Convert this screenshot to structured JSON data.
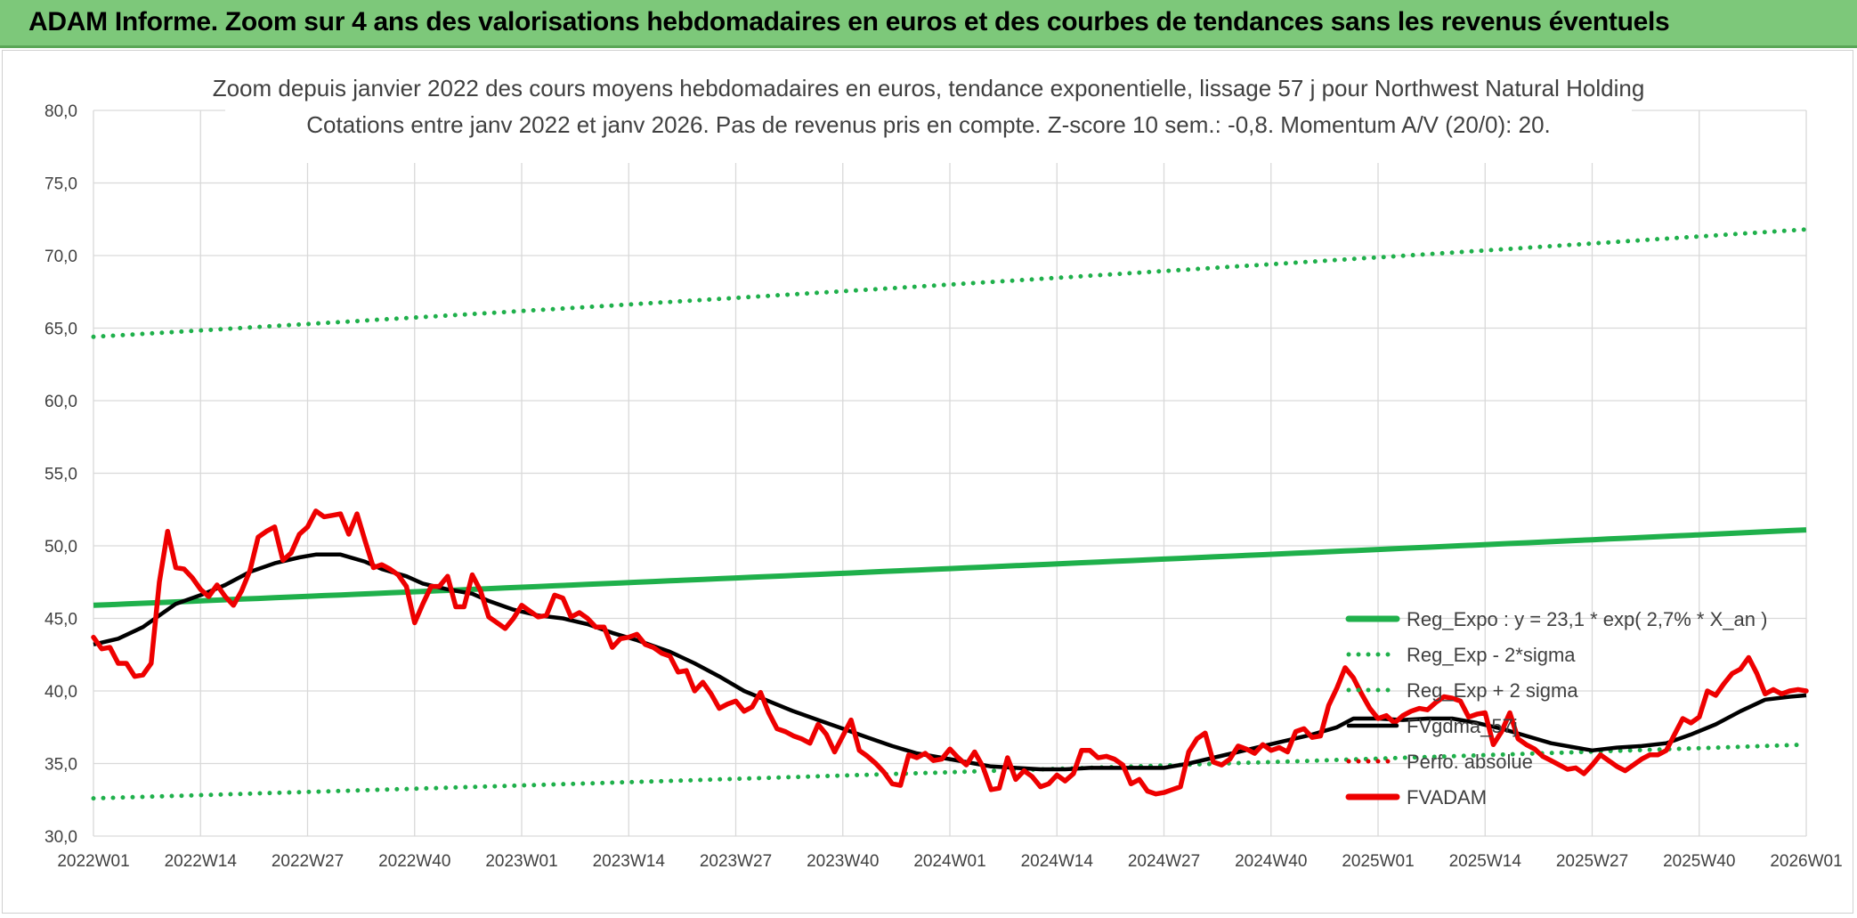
{
  "banner": {
    "title": "ADAM Informe. Zoom sur 4 ans des valorisations hebdomadaires en euros et des courbes de tendances sans les revenus éventuels"
  },
  "colors": {
    "banner_bg": "#7dc87a",
    "reg_expo": "#1fb04b",
    "sigma": "#1fb04b",
    "fvgdma": "#000000",
    "perfo": "#e00000",
    "fvadam": "#ee0000"
  },
  "chart_data": {
    "type": "line",
    "title": "Zoom depuis janvier 2022 des cours moyens hebdomadaires en euros, tendance exponentielle, lissage 57 j pour Northwest Natural Holding",
    "subtitle": "Cotations entre janv 2022 et janv 2026. Pas de revenus pris en compte. Z-score 10 sem.: -0,8. Momentum A/V (20/0): 20.",
    "xlabel": "",
    "ylabel": "",
    "ylim": [
      30,
      80
    ],
    "yticks": [
      "30,0",
      "35,0",
      "40,0",
      "45,0",
      "50,0",
      "55,0",
      "60,0",
      "65,0",
      "70,0",
      "75,0",
      "80,0"
    ],
    "xlim": [
      0,
      208
    ],
    "xticks": [
      {
        "label": "2022W01",
        "x": 0
      },
      {
        "label": "2022W14",
        "x": 13
      },
      {
        "label": "2022W27",
        "x": 26
      },
      {
        "label": "2022W40",
        "x": 39
      },
      {
        "label": "2023W01",
        "x": 52
      },
      {
        "label": "2023W14",
        "x": 65
      },
      {
        "label": "2023W27",
        "x": 78
      },
      {
        "label": "2023W40",
        "x": 91
      },
      {
        "label": "2024W01",
        "x": 104
      },
      {
        "label": "2024W14",
        "x": 117
      },
      {
        "label": "2024W27",
        "x": 130
      },
      {
        "label": "2024W40",
        "x": 143
      },
      {
        "label": "2025W01",
        "x": 156
      },
      {
        "label": "2025W14",
        "x": 169
      },
      {
        "label": "2025W27",
        "x": 182
      },
      {
        "label": "2025W40",
        "x": 195
      },
      {
        "label": "2026W01",
        "x": 208
      }
    ],
    "grid": true,
    "legend_position": "bottom-right",
    "series": [
      {
        "name": "Reg_Expo : y = 23,1 * exp( 2,7% *  X_an )",
        "style": "solid",
        "color": "#1fb04b",
        "start": 45.9,
        "end": 51.1
      },
      {
        "name": "Reg_Exp - 2*sigma",
        "style": "dotted",
        "color": "#1fb04b",
        "start": 32.6,
        "end": 36.3
      },
      {
        "name": "Reg_Exp + 2 sigma",
        "style": "dotted",
        "color": "#1fb04b",
        "start": 64.4,
        "end": 71.8
      },
      {
        "name": "FVgdma_57j",
        "style": "solid",
        "color": "#000000",
        "points": [
          [
            0,
            43.2
          ],
          [
            3,
            43.6
          ],
          [
            6,
            44.4
          ],
          [
            8,
            45.2
          ],
          [
            10,
            46.0
          ],
          [
            13,
            46.6
          ],
          [
            16,
            47.3
          ],
          [
            19,
            48.2
          ],
          [
            22,
            48.8
          ],
          [
            25,
            49.2
          ],
          [
            27,
            49.4
          ],
          [
            30,
            49.4
          ],
          [
            33,
            48.9
          ],
          [
            35,
            48.4
          ],
          [
            38,
            47.9
          ],
          [
            40,
            47.4
          ],
          [
            43,
            47.0
          ],
          [
            46,
            46.7
          ],
          [
            48,
            46.2
          ],
          [
            51,
            45.6
          ],
          [
            54,
            45.2
          ],
          [
            57,
            45.0
          ],
          [
            60,
            44.6
          ],
          [
            63,
            44.0
          ],
          [
            66,
            43.5
          ],
          [
            70,
            42.7
          ],
          [
            73,
            41.9
          ],
          [
            76,
            41.0
          ],
          [
            79,
            40.0
          ],
          [
            82,
            39.3
          ],
          [
            85,
            38.6
          ],
          [
            88,
            38.0
          ],
          [
            91,
            37.4
          ],
          [
            94,
            36.8
          ],
          [
            97,
            36.2
          ],
          [
            100,
            35.7
          ],
          [
            103,
            35.4
          ],
          [
            106,
            35.1
          ],
          [
            109,
            34.8
          ],
          [
            112,
            34.7
          ],
          [
            115,
            34.6
          ],
          [
            118,
            34.6
          ],
          [
            121,
            34.7
          ],
          [
            124,
            34.7
          ],
          [
            127,
            34.7
          ],
          [
            130,
            34.7
          ],
          [
            133,
            35.0
          ],
          [
            136,
            35.4
          ],
          [
            139,
            35.8
          ],
          [
            142,
            36.2
          ],
          [
            145,
            36.6
          ],
          [
            148,
            37.0
          ],
          [
            151,
            37.5
          ],
          [
            153,
            38.1
          ],
          [
            156,
            38.1
          ],
          [
            159,
            38.0
          ],
          [
            162,
            38.1
          ],
          [
            165,
            38.1
          ],
          [
            168,
            37.8
          ],
          [
            171,
            37.4
          ],
          [
            174,
            36.9
          ],
          [
            177,
            36.4
          ],
          [
            180,
            36.1
          ],
          [
            182,
            35.9
          ],
          [
            185,
            36.1
          ],
          [
            188,
            36.2
          ],
          [
            191,
            36.4
          ],
          [
            194,
            37.0
          ],
          [
            197,
            37.7
          ],
          [
            200,
            38.6
          ],
          [
            203,
            39.4
          ],
          [
            206,
            39.6
          ],
          [
            208,
            39.7
          ]
        ]
      },
      {
        "name": "Perfo. absolue",
        "style": "dotted",
        "color": "#e00000"
      },
      {
        "name": "FVADAM",
        "style": "solid",
        "color": "#ee0000",
        "points": [
          [
            0,
            43.7
          ],
          [
            1,
            42.9
          ],
          [
            2,
            43.0
          ],
          [
            3,
            41.9
          ],
          [
            4,
            41.9
          ],
          [
            5,
            41.0
          ],
          [
            6,
            41.1
          ],
          [
            7,
            41.9
          ],
          [
            8,
            47.5
          ],
          [
            9,
            51.0
          ],
          [
            10,
            48.5
          ],
          [
            11,
            48.4
          ],
          [
            12,
            47.8
          ],
          [
            13,
            47.0
          ],
          [
            14,
            46.5
          ],
          [
            15,
            47.3
          ],
          [
            16,
            46.5
          ],
          [
            17,
            45.9
          ],
          [
            18,
            46.9
          ],
          [
            19,
            48.3
          ],
          [
            20,
            50.6
          ],
          [
            21,
            51.0
          ],
          [
            22,
            51.3
          ],
          [
            23,
            49.0
          ],
          [
            24,
            49.5
          ],
          [
            25,
            50.8
          ],
          [
            26,
            51.3
          ],
          [
            27,
            52.4
          ],
          [
            28,
            52.0
          ],
          [
            29,
            52.1
          ],
          [
            30,
            52.2
          ],
          [
            31,
            50.8
          ],
          [
            32,
            52.2
          ],
          [
            33,
            50.3
          ],
          [
            34,
            48.5
          ],
          [
            35,
            48.7
          ],
          [
            36,
            48.4
          ],
          [
            37,
            48.0
          ],
          [
            38,
            47.2
          ],
          [
            39,
            44.7
          ],
          [
            40,
            46.0
          ],
          [
            41,
            47.2
          ],
          [
            42,
            47.2
          ],
          [
            43,
            47.9
          ],
          [
            44,
            45.8
          ],
          [
            45,
            45.8
          ],
          [
            46,
            48.0
          ],
          [
            47,
            46.9
          ],
          [
            48,
            45.1
          ],
          [
            49,
            44.7
          ],
          [
            50,
            44.3
          ],
          [
            51,
            45.0
          ],
          [
            52,
            45.9
          ],
          [
            53,
            45.5
          ],
          [
            54,
            45.1
          ],
          [
            55,
            45.2
          ],
          [
            56,
            46.6
          ],
          [
            57,
            46.4
          ],
          [
            58,
            45.1
          ],
          [
            59,
            45.4
          ],
          [
            60,
            45.0
          ],
          [
            61,
            44.4
          ],
          [
            62,
            44.4
          ],
          [
            63,
            43.0
          ],
          [
            64,
            43.6
          ],
          [
            65,
            43.7
          ],
          [
            66,
            43.9
          ],
          [
            67,
            43.2
          ],
          [
            68,
            43.0
          ],
          [
            69,
            42.6
          ],
          [
            70,
            42.4
          ],
          [
            71,
            41.3
          ],
          [
            72,
            41.4
          ],
          [
            73,
            40.0
          ],
          [
            74,
            40.6
          ],
          [
            75,
            39.8
          ],
          [
            76,
            38.8
          ],
          [
            77,
            39.1
          ],
          [
            78,
            39.3
          ],
          [
            79,
            38.6
          ],
          [
            80,
            38.9
          ],
          [
            81,
            39.9
          ],
          [
            82,
            38.5
          ],
          [
            83,
            37.4
          ],
          [
            84,
            37.2
          ],
          [
            85,
            36.9
          ],
          [
            86,
            36.7
          ],
          [
            87,
            36.4
          ],
          [
            88,
            37.7
          ],
          [
            89,
            37.0
          ],
          [
            90,
            35.8
          ],
          [
            91,
            36.9
          ],
          [
            92,
            38.0
          ],
          [
            93,
            35.9
          ],
          [
            94,
            35.5
          ],
          [
            95,
            35.0
          ],
          [
            96,
            34.4
          ],
          [
            97,
            33.6
          ],
          [
            98,
            33.5
          ],
          [
            99,
            35.6
          ],
          [
            100,
            35.4
          ],
          [
            101,
            35.7
          ],
          [
            102,
            35.2
          ],
          [
            103,
            35.3
          ],
          [
            104,
            36.0
          ],
          [
            105,
            35.4
          ],
          [
            106,
            34.9
          ],
          [
            107,
            35.8
          ],
          [
            108,
            34.8
          ],
          [
            109,
            33.2
          ],
          [
            110,
            33.3
          ],
          [
            111,
            35.4
          ],
          [
            112,
            33.9
          ],
          [
            113,
            34.5
          ],
          [
            114,
            34.1
          ],
          [
            115,
            33.4
          ],
          [
            116,
            33.6
          ],
          [
            117,
            34.2
          ],
          [
            118,
            33.8
          ],
          [
            119,
            34.3
          ],
          [
            120,
            35.9
          ],
          [
            121,
            35.9
          ],
          [
            122,
            35.4
          ],
          [
            123,
            35.5
          ],
          [
            124,
            35.3
          ],
          [
            125,
            34.9
          ],
          [
            126,
            33.6
          ],
          [
            127,
            33.9
          ],
          [
            128,
            33.1
          ],
          [
            129,
            32.9
          ],
          [
            130,
            33.0
          ],
          [
            131,
            33.2
          ],
          [
            132,
            33.4
          ],
          [
            133,
            35.8
          ],
          [
            134,
            36.7
          ],
          [
            135,
            37.1
          ],
          [
            136,
            35.1
          ],
          [
            137,
            34.9
          ],
          [
            138,
            35.3
          ],
          [
            139,
            36.2
          ],
          [
            140,
            36.0
          ],
          [
            141,
            35.7
          ],
          [
            142,
            36.3
          ],
          [
            143,
            35.9
          ],
          [
            144,
            36.1
          ],
          [
            145,
            35.8
          ],
          [
            146,
            37.2
          ],
          [
            147,
            37.4
          ],
          [
            148,
            36.8
          ],
          [
            149,
            36.9
          ],
          [
            150,
            39.0
          ],
          [
            151,
            40.2
          ],
          [
            152,
            41.6
          ],
          [
            153,
            40.9
          ],
          [
            154,
            39.8
          ],
          [
            155,
            38.8
          ],
          [
            156,
            38.1
          ],
          [
            157,
            38.3
          ],
          [
            158,
            37.8
          ],
          [
            159,
            38.3
          ],
          [
            160,
            38.6
          ],
          [
            161,
            38.8
          ],
          [
            162,
            38.7
          ],
          [
            163,
            39.2
          ],
          [
            164,
            39.6
          ],
          [
            165,
            39.5
          ],
          [
            166,
            39.3
          ],
          [
            167,
            38.2
          ],
          [
            168,
            38.4
          ],
          [
            169,
            38.5
          ],
          [
            170,
            36.3
          ],
          [
            171,
            37.2
          ],
          [
            172,
            38.5
          ],
          [
            173,
            36.7
          ],
          [
            174,
            36.3
          ],
          [
            175,
            36.0
          ],
          [
            176,
            35.5
          ],
          [
            177,
            35.2
          ],
          [
            178,
            34.9
          ],
          [
            179,
            34.6
          ],
          [
            180,
            34.7
          ],
          [
            181,
            34.3
          ],
          [
            182,
            34.9
          ],
          [
            183,
            35.6
          ],
          [
            184,
            35.2
          ],
          [
            185,
            34.8
          ],
          [
            186,
            34.5
          ],
          [
            187,
            34.9
          ],
          [
            188,
            35.3
          ],
          [
            189,
            35.6
          ],
          [
            190,
            35.6
          ],
          [
            191,
            35.9
          ],
          [
            192,
            37.0
          ],
          [
            193,
            38.1
          ],
          [
            194,
            37.8
          ],
          [
            195,
            38.2
          ],
          [
            196,
            40.0
          ],
          [
            197,
            39.7
          ],
          [
            198,
            40.5
          ],
          [
            199,
            41.2
          ],
          [
            200,
            41.5
          ],
          [
            201,
            42.3
          ],
          [
            202,
            41.2
          ],
          [
            203,
            39.8
          ],
          [
            204,
            40.1
          ],
          [
            205,
            39.8
          ],
          [
            206,
            40.0
          ],
          [
            207,
            40.1
          ],
          [
            208,
            40.0
          ]
        ]
      }
    ]
  }
}
